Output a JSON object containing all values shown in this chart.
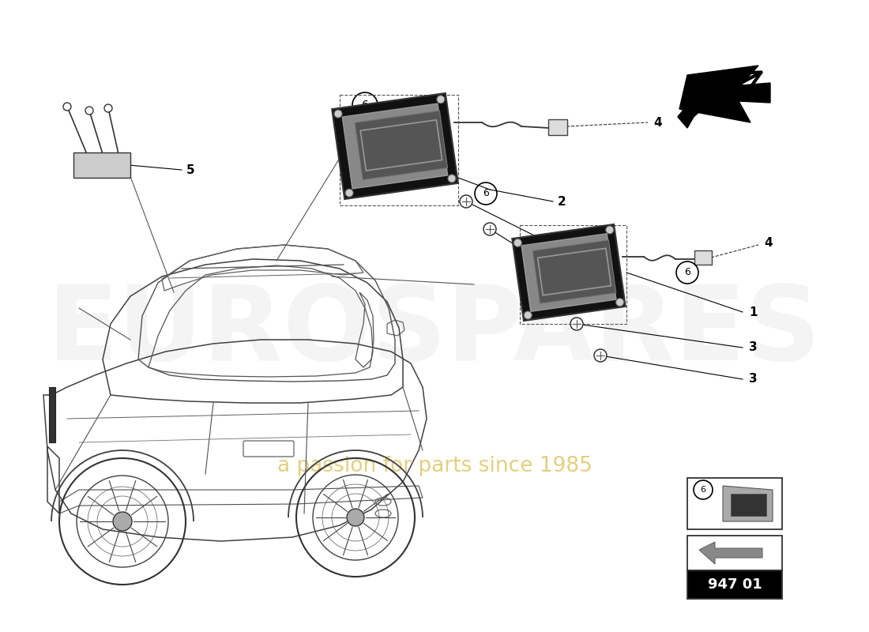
{
  "bg_color": "#ffffff",
  "part_number": "947 01",
  "watermark_text1": "EUROSPARES",
  "watermark_text2": "a passion for parts since 1985",
  "fig_width": 11.0,
  "fig_height": 8.0,
  "dpi": 100
}
